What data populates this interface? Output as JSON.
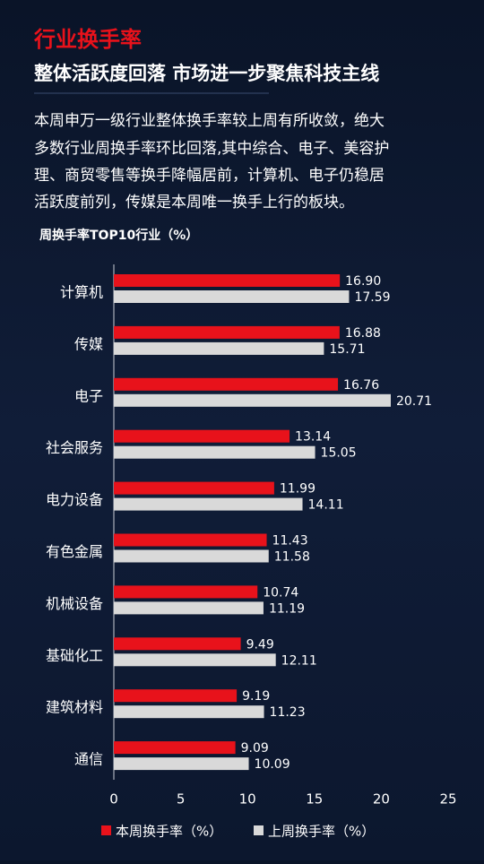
{
  "header": {
    "tag": "行业换手率",
    "title": "整体活跃度回落 市场进一步聚焦科技主线",
    "body": [
      "本周申万一级行业整体换手率较上周有所收敛，绝大",
      "多数行业周换手率环比回落,其中综合、电子、美容护",
      "理、商贸零售等换手降幅居前，计算机、电子仍稳居",
      "活跃度前列，传媒是本周唯一换手上行的板块。"
    ]
  },
  "chart_data": {
    "type": "hbar",
    "title": "周换手率TOP10行业（%）",
    "categories": [
      "计算机",
      "传媒",
      "电子",
      "社会服务",
      "电力设备",
      "有色金属",
      "机械设备",
      "基础化工",
      "建筑材料",
      "通信"
    ],
    "series": [
      {
        "name": "本周换手率（%）",
        "color": "#e8121b",
        "values": [
          16.9,
          16.88,
          16.76,
          13.14,
          11.99,
          11.43,
          10.74,
          9.49,
          9.19,
          9.09
        ],
        "value_labels": [
          "16.90",
          "16.88",
          "16.76",
          "13.14",
          "11.99",
          "11.43",
          "10.74",
          "9.49",
          "9.19",
          "9.09"
        ]
      },
      {
        "name": "上周换手率（%）",
        "color": "#d9d9d9",
        "values": [
          17.59,
          15.71,
          20.71,
          15.05,
          14.11,
          11.58,
          11.19,
          12.11,
          11.23,
          10.09
        ],
        "value_labels": [
          "17.59",
          "15.71",
          "20.71",
          "15.05",
          "14.11",
          "11.58",
          "11.19",
          "12.11",
          "11.23",
          "10.09"
        ]
      }
    ],
    "xlim": [
      0,
      25
    ],
    "xticks": [
      0,
      5,
      10,
      15,
      20,
      25
    ],
    "legend": "bottom"
  }
}
